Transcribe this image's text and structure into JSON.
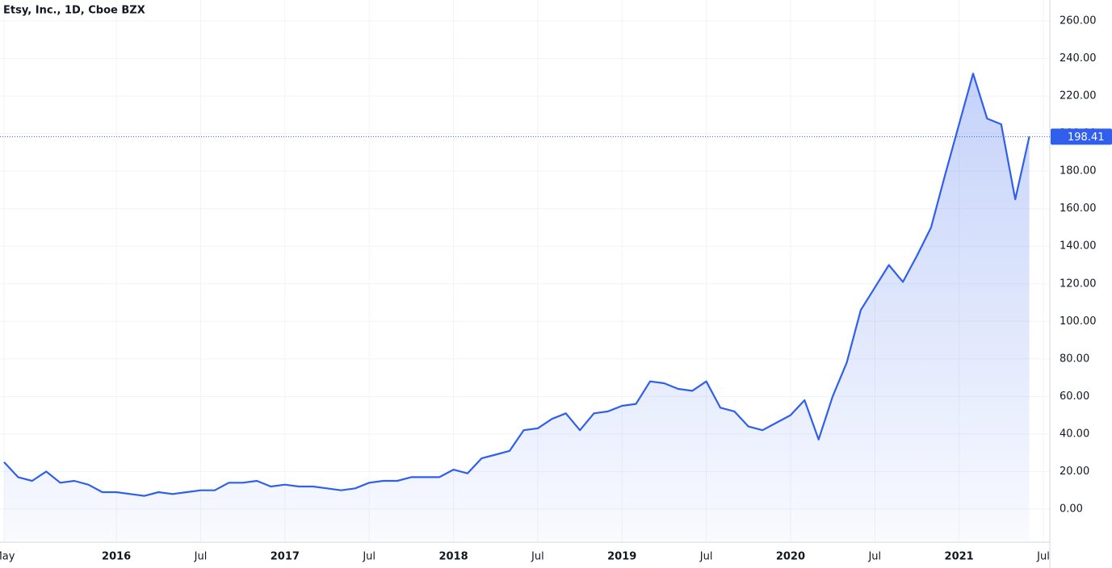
{
  "chart_data": {
    "type": "area",
    "title": "Etsy, Inc., 1D, Cboe BZX",
    "x": [
      "2015-05",
      "2015-06",
      "2015-07",
      "2015-08",
      "2015-09",
      "2015-10",
      "2015-11",
      "2015-12",
      "2016-01",
      "2016-02",
      "2016-03",
      "2016-04",
      "2016-05",
      "2016-06",
      "2016-07",
      "2016-08",
      "2016-09",
      "2016-10",
      "2016-11",
      "2016-12",
      "2017-01",
      "2017-02",
      "2017-03",
      "2017-04",
      "2017-05",
      "2017-06",
      "2017-07",
      "2017-08",
      "2017-09",
      "2017-10",
      "2017-11",
      "2017-12",
      "2018-01",
      "2018-02",
      "2018-03",
      "2018-04",
      "2018-05",
      "2018-06",
      "2018-07",
      "2018-08",
      "2018-09",
      "2018-10",
      "2018-11",
      "2018-12",
      "2019-01",
      "2019-02",
      "2019-03",
      "2019-04",
      "2019-05",
      "2019-06",
      "2019-07",
      "2019-08",
      "2019-09",
      "2019-10",
      "2019-11",
      "2019-12",
      "2020-01",
      "2020-02",
      "2020-03",
      "2020-04",
      "2020-05",
      "2020-06",
      "2020-07",
      "2020-08",
      "2020-09",
      "2020-10",
      "2020-11",
      "2020-12",
      "2021-01",
      "2021-02",
      "2021-03",
      "2021-04",
      "2021-05",
      "2021-06"
    ],
    "series": [
      {
        "name": "Etsy, Inc.",
        "color": "#2f5fec",
        "values": [
          25,
          17,
          15,
          20,
          14,
          15,
          13,
          9,
          9,
          8,
          7,
          9,
          8,
          9,
          10,
          10,
          14,
          14,
          15,
          12,
          13,
          12,
          12,
          11,
          10,
          11,
          14,
          15,
          15,
          17,
          17,
          17,
          21,
          19,
          27,
          29,
          31,
          42,
          43,
          48,
          51,
          42,
          51,
          52,
          55,
          56,
          68,
          67,
          64,
          63,
          68,
          54,
          52,
          44,
          42,
          46,
          50,
          58,
          37,
          60,
          78,
          106,
          118,
          130,
          121,
          135,
          150,
          178,
          205,
          232,
          208,
          205,
          165,
          198.41
        ]
      }
    ],
    "last_value_label": "198.41",
    "xlim": [
      "2015-05",
      "2021-07"
    ],
    "xticks": [
      {
        "value": "2015-05",
        "label": "May"
      },
      {
        "value": "2016-01",
        "label": "2016"
      },
      {
        "value": "2016-07",
        "label": "Jul"
      },
      {
        "value": "2017-01",
        "label": "2017"
      },
      {
        "value": "2017-07",
        "label": "Jul"
      },
      {
        "value": "2018-01",
        "label": "2018"
      },
      {
        "value": "2018-07",
        "label": "Jul"
      },
      {
        "value": "2019-01",
        "label": "2019"
      },
      {
        "value": "2019-07",
        "label": "Jul"
      },
      {
        "value": "2020-01",
        "label": "2020"
      },
      {
        "value": "2020-07",
        "label": "Jul"
      },
      {
        "value": "2021-01",
        "label": "2021"
      },
      {
        "value": "2021-07",
        "label": "Jul"
      }
    ],
    "ylim": [
      -16.8,
      271.2
    ],
    "yticks": [
      {
        "value": 0,
        "label": "0.00"
      },
      {
        "value": 20,
        "label": "20.00"
      },
      {
        "value": 40,
        "label": "40.00"
      },
      {
        "value": 60,
        "label": "60.00"
      },
      {
        "value": 80,
        "label": "80.00"
      },
      {
        "value": 100,
        "label": "100.00"
      },
      {
        "value": 120,
        "label": "120.00"
      },
      {
        "value": 140,
        "label": "140.00"
      },
      {
        "value": 160,
        "label": "160.00"
      },
      {
        "value": 180,
        "label": "180.00"
      },
      {
        "value": 200,
        "label": "200.00"
      },
      {
        "value": 220,
        "label": "220.00"
      },
      {
        "value": 240,
        "label": "240.00"
      },
      {
        "value": 260,
        "label": "260.00"
      }
    ],
    "grid": true
  }
}
